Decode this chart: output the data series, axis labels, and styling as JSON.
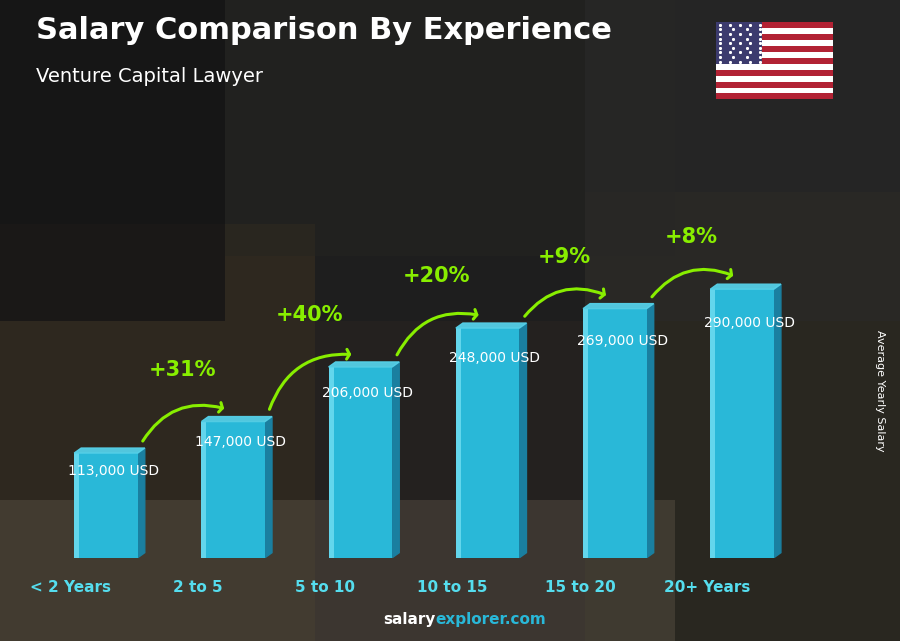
{
  "title": "Salary Comparison By Experience",
  "subtitle": "Venture Capital Lawyer",
  "categories": [
    "< 2 Years",
    "2 to 5",
    "5 to 10",
    "10 to 15",
    "15 to 20",
    "20+ Years"
  ],
  "values": [
    113000,
    147000,
    206000,
    248000,
    269000,
    290000
  ],
  "value_labels": [
    "113,000 USD",
    "147,000 USD",
    "206,000 USD",
    "248,000 USD",
    "269,000 USD",
    "290,000 USD"
  ],
  "pct_changes": [
    null,
    "+31%",
    "+40%",
    "+20%",
    "+9%",
    "+8%"
  ],
  "bar_color_main": "#29b8d8",
  "bar_color_dark": "#1a7fa0",
  "bar_color_light": "#7de4f5",
  "bar_color_top": "#55d0e8",
  "bg_color": "#2a2a2a",
  "text_color": "#ffffff",
  "pct_color": "#88ee00",
  "cat_color": "#55ddee",
  "ylabel": "Average Yearly Salary",
  "footer_left": "salary",
  "footer_right": "explorer.com",
  "footer_left_color": "#ffffff",
  "footer_right_color": "#29b8d8",
  "ylim_max": 360000,
  "title_fontsize": 22,
  "subtitle_fontsize": 14,
  "cat_fontsize": 11,
  "val_fontsize": 10,
  "pct_fontsize": 15,
  "ylabel_fontsize": 8
}
